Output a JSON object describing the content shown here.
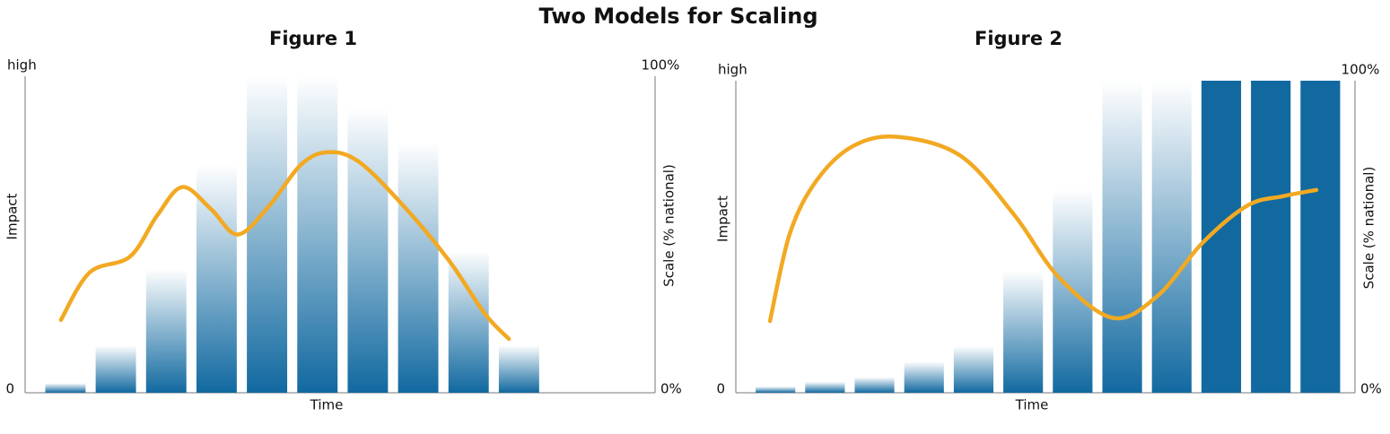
{
  "title": "Two Models for Scaling",
  "chart_data": [
    {
      "type": "bar",
      "title": "Figure 1",
      "xlabel": "Time",
      "ylabel": "Impact",
      "y2label": "Scale (% national)",
      "ylim": [
        0,
        1
      ],
      "yticks": [
        0,
        {
          "value": 1,
          "label": "high"
        }
      ],
      "y2lim": [
        0,
        100
      ],
      "y2ticks": [
        {
          "value": 0,
          "label": "0%"
        },
        {
          "value": 100,
          "label": "100%"
        }
      ],
      "series": [
        {
          "name": "Scale",
          "axis": "y2",
          "color": "#1169a0",
          "values": [
            3,
            15,
            39,
            72,
            100,
            100,
            90,
            79,
            45,
            15,
            null,
            null
          ],
          "styles": [
            "gradient",
            "gradient",
            "gradient",
            "gradient",
            "gradient",
            "gradient",
            "gradient",
            "gradient",
            "gradient",
            "gradient",
            "gradient",
            "gradient"
          ]
        },
        {
          "name": "Impact",
          "type": "line",
          "color": "#f2a922",
          "x": [
            0.71,
            1.28,
            2.08,
            2.62,
            3.12,
            3.69,
            4.22,
            4.84,
            5.47,
            6.0,
            6.62,
            7.51,
            8.4,
            9.12,
            9.6
          ],
          "values": [
            0.23,
            0.38,
            0.43,
            0.56,
            0.65,
            0.58,
            0.5,
            0.59,
            0.72,
            0.76,
            0.73,
            0.59,
            0.42,
            0.25,
            0.17
          ]
        }
      ]
    },
    {
      "type": "bar",
      "title": "Figure 2",
      "xlabel": "Time",
      "ylabel": "Impact",
      "y2label": "Scale (% national)",
      "ylim": [
        0,
        1
      ],
      "yticks": [
        0,
        {
          "value": 1,
          "label": "high"
        }
      ],
      "y2lim": [
        0,
        100
      ],
      "y2ticks": [
        {
          "value": 0,
          "label": "0%"
        },
        {
          "value": 100,
          "label": "100%"
        }
      ],
      "series": [
        {
          "name": "Scale",
          "axis": "y2",
          "color": "#1169a0",
          "values": [
            2,
            3.5,
            5,
            10,
            15,
            39,
            65,
            100,
            100,
            100,
            100,
            100
          ],
          "styles": [
            "gradient",
            "gradient",
            "gradient",
            "gradient",
            "gradient",
            "gradient",
            "gradient",
            "gradient",
            "gradient",
            "solid",
            "solid",
            "solid"
          ]
        },
        {
          "name": "Impact",
          "type": "line",
          "color": "#f2a922",
          "x": [
            0.69,
            1.09,
            1.63,
            2.36,
            3.26,
            4.53,
            5.62,
            6.52,
            7.61,
            8.51,
            9.42,
            10.33,
            11.05,
            11.72
          ],
          "values": [
            0.23,
            0.51,
            0.68,
            0.79,
            0.82,
            0.76,
            0.57,
            0.37,
            0.24,
            0.31,
            0.48,
            0.6,
            0.63,
            0.65
          ]
        }
      ]
    }
  ]
}
